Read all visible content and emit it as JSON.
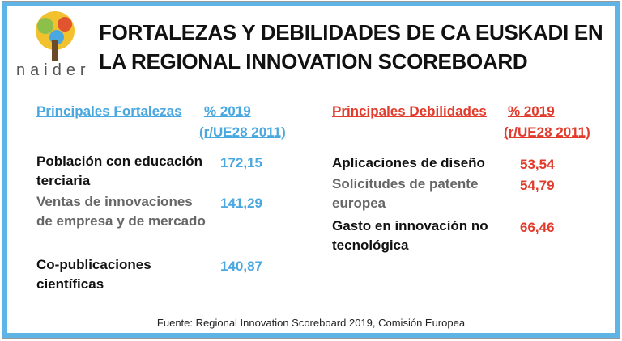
{
  "logo": {
    "text": "naider"
  },
  "header": {
    "title_lines": [
      "FORTALEZAS Y DEBILIDADES DE CA EUSKADI EN",
      "LA REGIONAL INNOVATION SCOREBOARD"
    ]
  },
  "strengths": {
    "heading": "Principales Fortalezas",
    "value_heading": "% 2019",
    "value_subheading": "(r/UE28 2011)",
    "rows": [
      [
        "Población con educación terciaria",
        "172,15"
      ],
      [
        "Ventas de innovaciones de empresa y de mercado",
        "141,29"
      ],
      [
        "Co-publicaciones científicas",
        "140,87"
      ]
    ]
  },
  "weaknesses": {
    "heading": "Principales Debilidades",
    "value_heading": "% 2019",
    "value_subheading": "(r/UE28 2011)",
    "rows": [
      [
        "Aplicaciones de diseño",
        "53,54"
      ],
      [
        "Solicitudes de patente europea",
        "54,79"
      ],
      [
        "Gasto en innovación no tecnológica",
        "66,46"
      ]
    ]
  },
  "footer": {
    "source": "Fuente: Regional Innovation Scoreboard 2019, Comisión Europea"
  }
}
